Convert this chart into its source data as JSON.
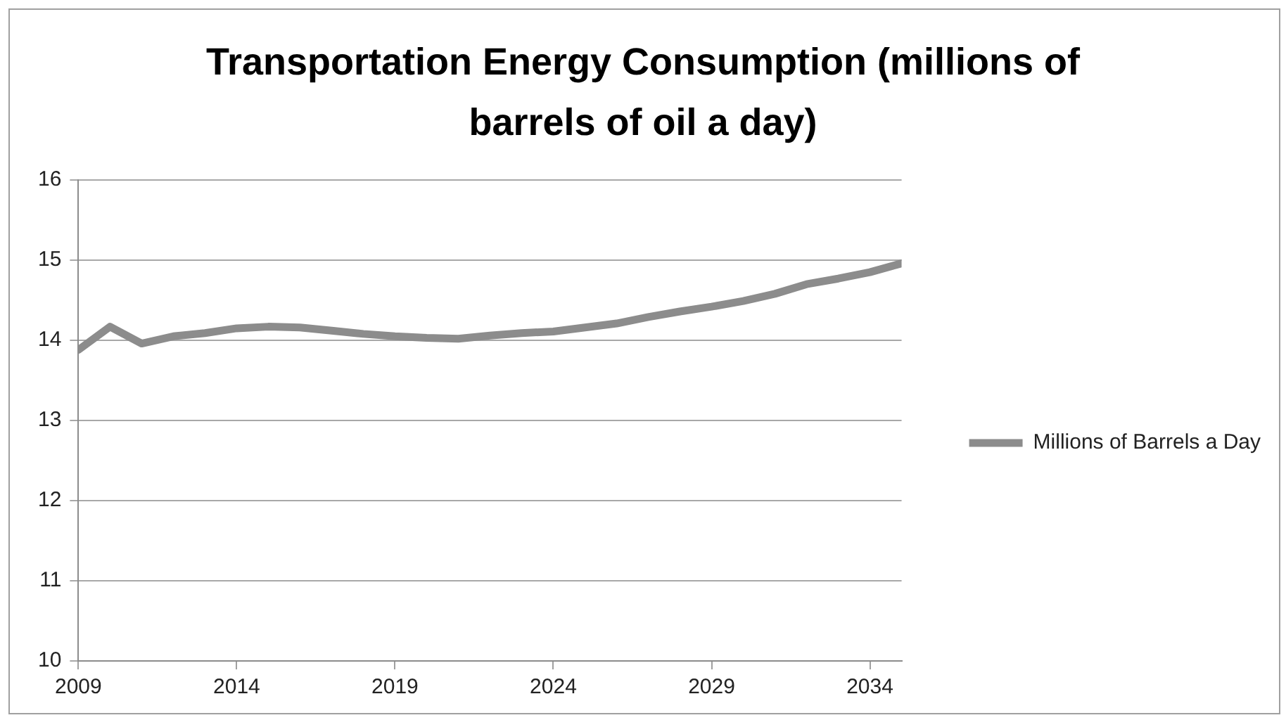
{
  "chart_data": {
    "type": "line",
    "title": "Transportation Energy Consumption (millions of barrels of oil a day)",
    "x": [
      2009,
      2010,
      2011,
      2012,
      2013,
      2014,
      2015,
      2016,
      2017,
      2018,
      2019,
      2020,
      2021,
      2022,
      2023,
      2024,
      2025,
      2026,
      2027,
      2028,
      2029,
      2030,
      2031,
      2032,
      2033,
      2034,
      2035
    ],
    "series": [
      {
        "name": "Millions of Barrels a Day",
        "color": "#8c8c8c",
        "values": [
          13.88,
          14.17,
          13.96,
          14.05,
          14.09,
          14.15,
          14.17,
          14.16,
          14.12,
          14.08,
          14.05,
          14.03,
          14.02,
          14.06,
          14.09,
          14.11,
          14.16,
          14.21,
          14.29,
          14.36,
          14.42,
          14.49,
          14.58,
          14.7,
          14.77,
          14.85,
          14.96
        ]
      }
    ],
    "xlim": [
      2009,
      2035
    ],
    "xticks": [
      2009,
      2014,
      2019,
      2024,
      2029,
      2034
    ],
    "ylim": [
      10,
      16
    ],
    "yticks": [
      10,
      11,
      12,
      13,
      14,
      15,
      16
    ],
    "grid": "y",
    "legend": "right",
    "marker": "none",
    "line_style": "solid"
  }
}
